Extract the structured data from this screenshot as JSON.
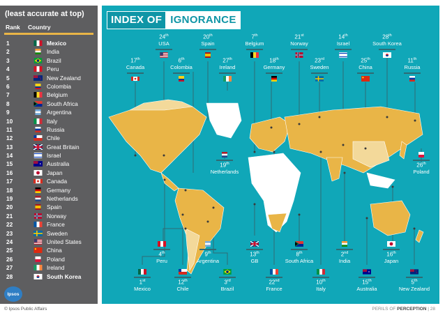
{
  "panel": {
    "heading": "(least accurate at top)",
    "col_rank": "Rank",
    "col_country": "Country",
    "logo_text": "Ipsos"
  },
  "ranks": [
    {
      "rank": "1",
      "country": "Mexico",
      "flag": "mexico-flag"
    },
    {
      "rank": "2",
      "country": "India",
      "flag": "india-flag"
    },
    {
      "rank": "3",
      "country": "Brazil",
      "flag": "brazil-flag"
    },
    {
      "rank": "4",
      "country": "Peru",
      "flag": "peru-flag"
    },
    {
      "rank": "5",
      "country": "New Zealand",
      "flag": "new-zealand-flag"
    },
    {
      "rank": "6",
      "country": "Colombia",
      "flag": "colombia-flag"
    },
    {
      "rank": "7",
      "country": "Belgium",
      "flag": "belgium-flag"
    },
    {
      "rank": "8",
      "country": "South Africa",
      "flag": "south-africa-flag"
    },
    {
      "rank": "9",
      "country": "Argentina",
      "flag": "argentina-flag"
    },
    {
      "rank": "10",
      "country": "Italy",
      "flag": "italy-flag"
    },
    {
      "rank": "11",
      "country": "Russia",
      "flag": "russia-flag"
    },
    {
      "rank": "12",
      "country": "Chile",
      "flag": "chile-flag"
    },
    {
      "rank": "13",
      "country": "Great Britain",
      "flag": "great-britain-flag"
    },
    {
      "rank": "14",
      "country": "Israel",
      "flag": "israel-flag"
    },
    {
      "rank": "15",
      "country": "Australia",
      "flag": "australia-flag"
    },
    {
      "rank": "16",
      "country": "Japan",
      "flag": "japan-flag"
    },
    {
      "rank": "17",
      "country": "Canada",
      "flag": "canada-flag"
    },
    {
      "rank": "18",
      "country": "Germany",
      "flag": "germany-flag"
    },
    {
      "rank": "19",
      "country": "Netherlands",
      "flag": "netherlands-flag"
    },
    {
      "rank": "20",
      "country": "Spain",
      "flag": "spain-flag"
    },
    {
      "rank": "21",
      "country": "Norway",
      "flag": "norway-flag"
    },
    {
      "rank": "22",
      "country": "France",
      "flag": "france-flag"
    },
    {
      "rank": "23",
      "country": "Sweden",
      "flag": "sweden-flag"
    },
    {
      "rank": "24",
      "country": "United States",
      "flag": "usa-flag"
    },
    {
      "rank": "25",
      "country": "China",
      "flag": "china-flag"
    },
    {
      "rank": "26",
      "country": "Poland",
      "flag": "poland-flag"
    },
    {
      "rank": "27",
      "country": "Ireland",
      "flag": "ireland-flag"
    },
    {
      "rank": "28",
      "country": "South Korea",
      "flag": "south-korea-flag"
    }
  ],
  "title": {
    "part1": "INDEX OF",
    "part2": "IGNORANCE"
  },
  "callouts": {
    "usa": {
      "num": "24",
      "suf": "th",
      "name": "USA"
    },
    "spain": {
      "num": "20",
      "suf": "th",
      "name": "Spain"
    },
    "belgium": {
      "num": "7",
      "suf": "th",
      "name": "Belgium"
    },
    "norway": {
      "num": "21",
      "suf": "st",
      "name": "Norway"
    },
    "israel": {
      "num": "14",
      "suf": "th",
      "name": "Israel"
    },
    "south_korea": {
      "num": "28",
      "suf": "th",
      "name": "South Korea"
    },
    "canada": {
      "num": "17",
      "suf": "th",
      "name": "Canada"
    },
    "colombia": {
      "num": "6",
      "suf": "th",
      "name": "Colombia"
    },
    "ireland": {
      "num": "27",
      "suf": "th",
      "name": "Ireland"
    },
    "germany": {
      "num": "18",
      "suf": "th",
      "name": "Germany"
    },
    "sweden": {
      "num": "23",
      "suf": "rd",
      "name": "Sweden"
    },
    "china": {
      "num": "25",
      "suf": "th",
      "name": "China"
    },
    "russia": {
      "num": "11",
      "suf": "th",
      "name": "Russia"
    },
    "netherlands": {
      "num": "19",
      "suf": "th",
      "name": "Netherlands"
    },
    "poland": {
      "num": "26",
      "suf": "th",
      "name": "Poland"
    },
    "peru": {
      "num": "4",
      "suf": "th",
      "name": "Peru"
    },
    "argentina": {
      "num": "9",
      "suf": "th",
      "name": "Argentina"
    },
    "gb": {
      "num": "13",
      "suf": "th",
      "name": "GB"
    },
    "south_africa": {
      "num": "8",
      "suf": "th",
      "name": "South Africa"
    },
    "india": {
      "num": "2",
      "suf": "nd",
      "name": "India"
    },
    "japan": {
      "num": "16",
      "suf": "th",
      "name": "Japan"
    },
    "mexico": {
      "num": "1",
      "suf": "st",
      "name": "Mexico"
    },
    "chile": {
      "num": "12",
      "suf": "th",
      "name": "Chile"
    },
    "brazil": {
      "num": "3",
      "suf": "rd",
      "name": "Brazil"
    },
    "france": {
      "num": "22",
      "suf": "nd",
      "name": "France"
    },
    "italy": {
      "num": "10",
      "suf": "th",
      "name": "Italy"
    },
    "australia": {
      "num": "15",
      "suf": "th",
      "name": "Australia"
    },
    "new_zealand": {
      "num": "5",
      "suf": "th",
      "name": "New Zealand"
    }
  },
  "footer": {
    "left": "© Ipsos Public Affairs",
    "right_prefix": "PERILS OF",
    "right_bold": "PERCEPTION",
    "separator": "|",
    "page": "28"
  },
  "colors": {
    "panel": "#5e5e60",
    "accent": "#e9b547",
    "ocean": "#10a7b8",
    "land_light": "#f3d99a",
    "land_white": "#ffffff"
  }
}
